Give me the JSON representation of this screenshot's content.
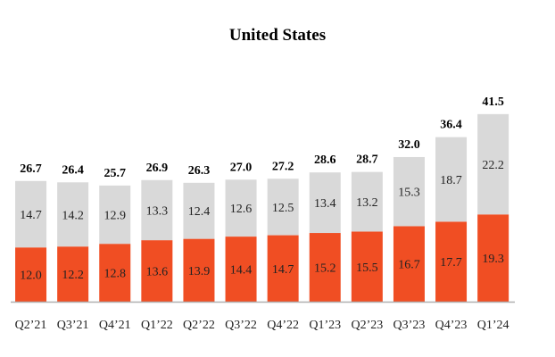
{
  "chart_data": {
    "type": "bar",
    "stacked": true,
    "title": "United States",
    "xlabel": "",
    "ylabel": "",
    "ylim": [
      0,
      45
    ],
    "grid": false,
    "legend": "none",
    "categories": [
      "Q2’21",
      "Q3’21",
      "Q4’21",
      "Q1’22",
      "Q2’22",
      "Q3’22",
      "Q4’22",
      "Q1’23",
      "Q2’23",
      "Q3’23",
      "Q4’23",
      "Q1’24"
    ],
    "series": [
      {
        "name": "bottom",
        "color": "#f04e23",
        "values": [
          12.0,
          12.2,
          12.8,
          13.6,
          13.9,
          14.4,
          14.7,
          15.2,
          15.5,
          16.7,
          17.7,
          19.3
        ]
      },
      {
        "name": "top",
        "color": "#d9d9d9",
        "values": [
          14.7,
          14.2,
          12.9,
          13.3,
          12.4,
          12.6,
          12.5,
          13.4,
          13.2,
          15.3,
          18.7,
          22.2
        ]
      }
    ],
    "segment_labels": {
      "bottom": [
        "12.0",
        "12.2",
        "12.8",
        "13.6",
        "13.9",
        "14.4",
        "14.7",
        "15.2",
        "15.5",
        "16.7",
        "17.7",
        "19.3"
      ],
      "top": [
        "14.7",
        "14.2",
        "12.9",
        "13.3",
        "12.4",
        "12.6",
        "12.5",
        "13.4",
        "13.2",
        "15.3",
        "18.7",
        "22.2"
      ]
    },
    "totals": [
      26.7,
      26.4,
      25.7,
      26.9,
      26.3,
      27.0,
      27.2,
      28.6,
      28.7,
      32.0,
      36.4,
      41.5
    ],
    "total_labels": [
      "26.7",
      "26.4",
      "25.7",
      "26.9",
      "26.3",
      "27.0",
      "27.2",
      "28.6",
      "28.7",
      "32.0",
      "36.4",
      "41.5"
    ],
    "baseline_color": "#b0b0b0"
  }
}
